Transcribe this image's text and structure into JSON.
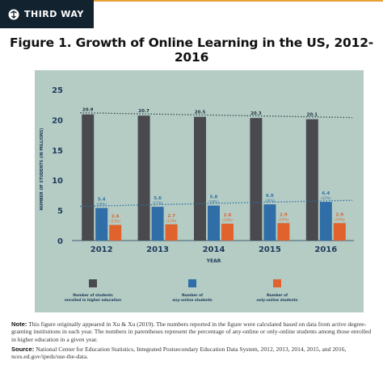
{
  "brand": {
    "name": "THIRD WAY",
    "accent": "#e8a23a",
    "background": "#12222f"
  },
  "figure": {
    "title": "Figure 1. Growth of Online Learning in the US, 2012-2016"
  },
  "chart_data": {
    "type": "bar",
    "title": "Figure 1. Growth of Online Learning in the US, 2012-2016",
    "xlabel": "YEAR",
    "ylabel": "NUMBER OF STUDENTS (IN MILLIONS)",
    "ylim": [
      0,
      25
    ],
    "yticks": [
      "0",
      "5",
      "10",
      "15",
      "20",
      "25"
    ],
    "categories": [
      "2012",
      "2013",
      "2014",
      "2015",
      "2016"
    ],
    "grid": false,
    "legend_position": "bottom",
    "trendlines": "dotted",
    "series": [
      {
        "name": "Number of students enrolled in higher education",
        "color": "#4a4a4e",
        "values": [
          20.9,
          20.7,
          20.5,
          20.3,
          20.1
        ],
        "labels": [
          "20.9",
          "20.7",
          "20.5",
          "20.3",
          "20.1"
        ],
        "pct_labels": [
          "",
          "",
          "",
          "",
          ""
        ]
      },
      {
        "name": "Number of any-online students",
        "color": "#2f6ea6",
        "values": [
          5.4,
          5.6,
          5.8,
          6.0,
          6.4
        ],
        "labels": [
          "5.4",
          "5.6",
          "5.8",
          "6.0",
          "6.4"
        ],
        "pct_labels": [
          "(26%)",
          "(27%)",
          "(28%)",
          "(30%)",
          "(32%)"
        ]
      },
      {
        "name": "Number of only-online students",
        "color": "#e0622d",
        "values": [
          2.6,
          2.7,
          2.8,
          2.9,
          2.9
        ],
        "labels": [
          "2.6",
          "2.7",
          "2.8",
          "2.9",
          "2.9"
        ],
        "pct_labels": [
          "(13%)",
          "(13%)",
          "(14%)",
          "(14%)",
          "(14%)"
        ]
      }
    ],
    "legend": [
      {
        "line1": "Number of students",
        "line2": "enrolled in higher education"
      },
      {
        "line1": "Number of",
        "line2": "any-online students"
      },
      {
        "line1": "Number of",
        "line2": "only-online students"
      }
    ]
  },
  "notes": {
    "note_label": "Note:",
    "note_text": "This figure originally appeared in Xu & Xu (2019). The numbers reported in the figure were calculated based on data from active degree-granting institutions in each year. The numbers in parentheses represent the percentage of any-online or only-online students among those enrolled in higher education in a given year.",
    "source_label": "Source:",
    "source_text": "National Center for Education Statistics, Integrated Postsecondary Education Data System, 2012, 2013, 2014, 2015, and 2016, nces.ed.gov/ipeds/use-the-data."
  }
}
